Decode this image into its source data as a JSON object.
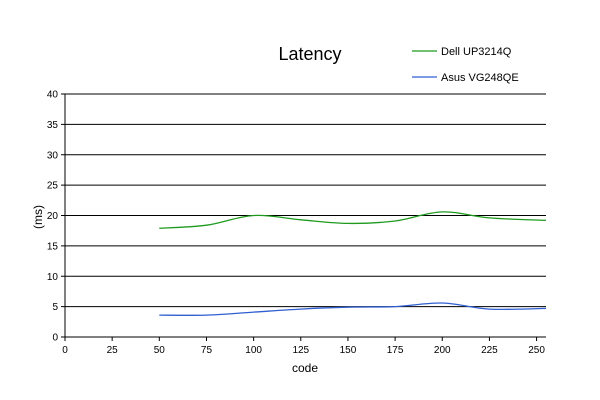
{
  "chart_data": {
    "type": "line",
    "title": "Latency",
    "xlabel": "code",
    "ylabel": "(ms)",
    "xlim": [
      0,
      255
    ],
    "ylim": [
      0,
      40
    ],
    "xticks": [
      0,
      25,
      50,
      75,
      100,
      125,
      150,
      175,
      200,
      225,
      250
    ],
    "yticks": [
      0,
      5,
      10,
      15,
      20,
      25,
      30,
      35,
      40
    ],
    "grid": "horizontal",
    "legend_position": "top-right",
    "series": [
      {
        "name": "Dell UP3214Q",
        "color": "#1f9a1f",
        "x": [
          50,
          75,
          100,
          125,
          150,
          175,
          200,
          225,
          255
        ],
        "y": [
          17.9,
          18.4,
          20.0,
          19.3,
          18.7,
          19.1,
          20.6,
          19.6,
          19.2
        ]
      },
      {
        "name": "Asus VG248QE",
        "color": "#2f5fd0",
        "x": [
          50,
          75,
          100,
          125,
          150,
          175,
          200,
          225,
          255
        ],
        "y": [
          3.6,
          3.6,
          4.1,
          4.6,
          4.9,
          5.0,
          5.6,
          4.6,
          4.7
        ]
      }
    ]
  }
}
